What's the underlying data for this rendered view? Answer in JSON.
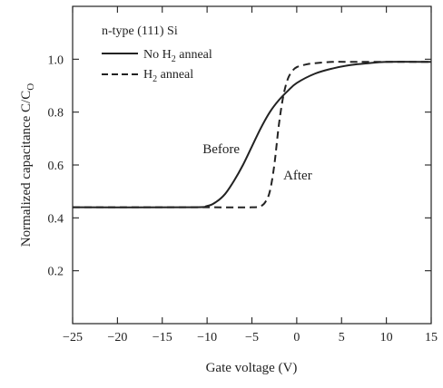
{
  "chart_data": {
    "type": "line",
    "title": "n-type (111) Si",
    "xlabel": "Gate voltage   (V)",
    "ylabel": "Normalized capacitance C/C",
    "ylabel_subscript": "O",
    "xlim": [
      -25,
      15
    ],
    "ylim": [
      0,
      1.2
    ],
    "x_ticks": [
      -25,
      -20,
      -15,
      -10,
      -5,
      0,
      5,
      10,
      15
    ],
    "x_tick_labels": [
      "−25",
      "−20",
      "−15",
      "−10",
      "−5",
      "0",
      "5",
      "10",
      "15"
    ],
    "y_ticks": [
      0.2,
      0.4,
      0.6,
      0.8,
      1.0
    ],
    "y_tick_labels": [
      "0.2",
      "0.4",
      "0.6",
      "0.8",
      "1.0"
    ],
    "grid": false,
    "legend_position": "top-left",
    "series": [
      {
        "name": "No H2 anneal",
        "label_main": "No H",
        "label_sub": "2",
        "label_tail": " anneal",
        "style": "solid",
        "color": "#222222",
        "x": [
          -25,
          -12,
          -10,
          -9,
          -8,
          -7,
          -6,
          -5,
          -4,
          -3,
          -2,
          -1,
          0,
          2,
          4,
          6,
          8,
          10,
          15
        ],
        "y": [
          0.44,
          0.44,
          0.445,
          0.46,
          0.49,
          0.54,
          0.6,
          0.67,
          0.74,
          0.8,
          0.845,
          0.88,
          0.91,
          0.945,
          0.965,
          0.978,
          0.985,
          0.99,
          0.99
        ]
      },
      {
        "name": "H2 anneal",
        "label_main": "H",
        "label_sub": "2",
        "label_tail": " anneal",
        "style": "dashed",
        "color": "#222222",
        "x": [
          -25,
          -10,
          -5,
          -4,
          -3.5,
          -3,
          -2.5,
          -2,
          -1.5,
          -1,
          -0.5,
          0,
          1,
          2,
          4,
          6,
          10,
          15
        ],
        "y": [
          0.44,
          0.44,
          0.44,
          0.445,
          0.46,
          0.5,
          0.6,
          0.75,
          0.86,
          0.925,
          0.955,
          0.97,
          0.98,
          0.985,
          0.99,
          0.99,
          0.99,
          0.99
        ]
      }
    ],
    "annotations": [
      {
        "text": "Before",
        "x": -10.5,
        "y": 0.645
      },
      {
        "text": "After",
        "x": -1.5,
        "y": 0.545
      }
    ]
  }
}
